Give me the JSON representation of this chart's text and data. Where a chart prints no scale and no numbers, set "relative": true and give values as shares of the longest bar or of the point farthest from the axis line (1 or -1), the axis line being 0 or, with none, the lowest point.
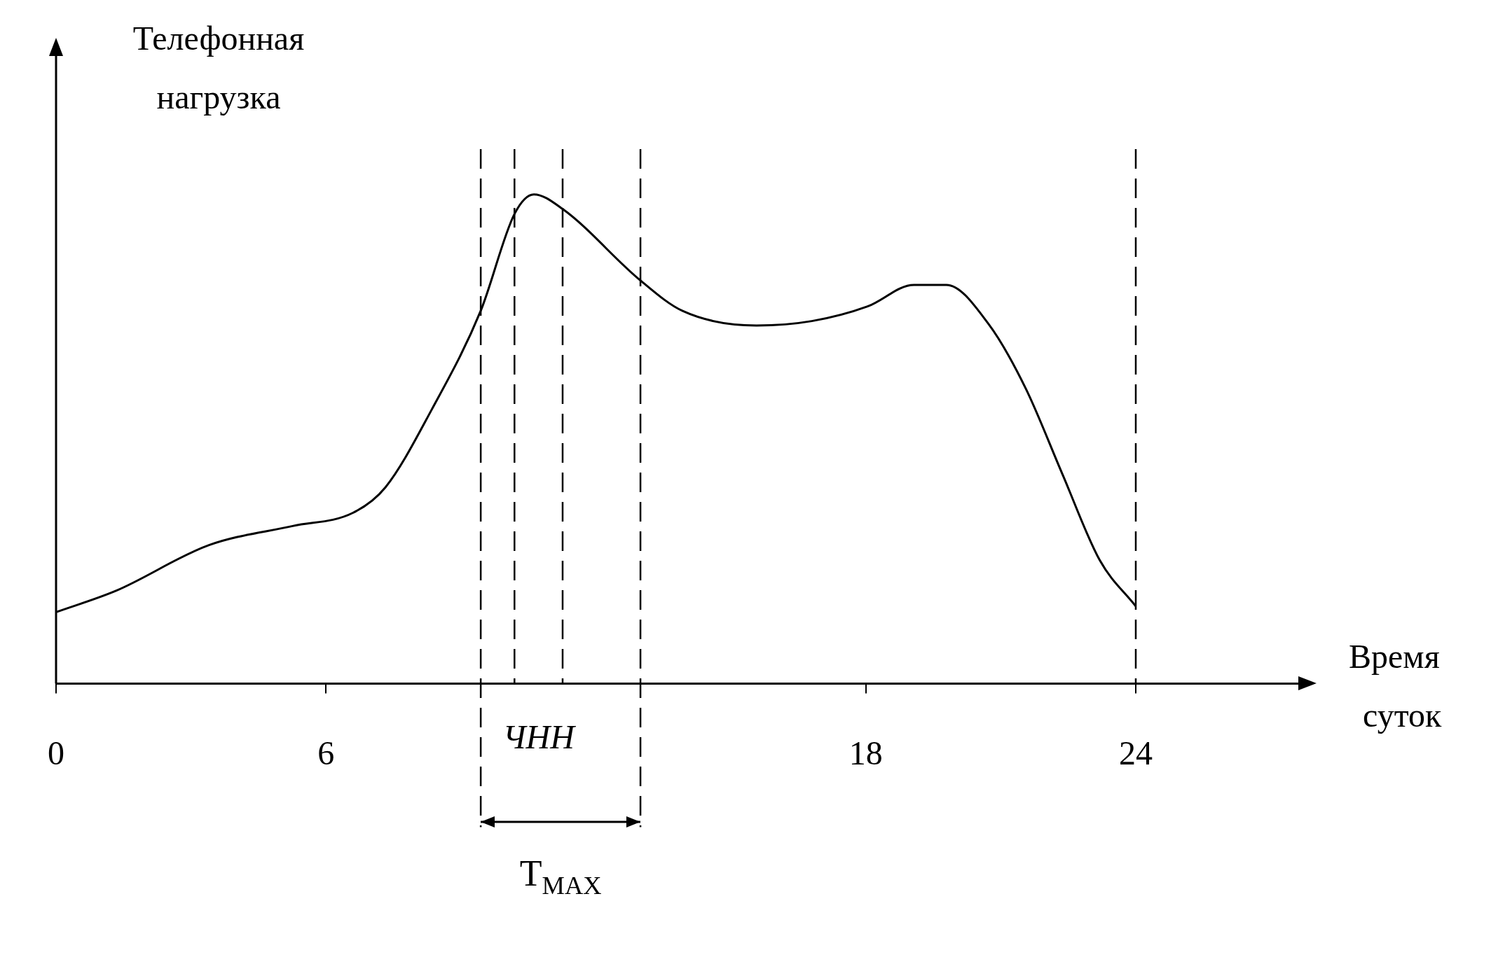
{
  "chart_data": {
    "type": "line",
    "relative": true,
    "xlabel": "Время суток",
    "ylabel": "Телефонная нагрузка",
    "x": [
      0,
      1.34,
      3.4,
      5.26,
      6.6,
      7.32,
      8.35,
      9.44,
      10.19,
      10.62,
      11.26,
      12.99,
      13.92,
      15.57,
      16.8,
      18.04,
      19.07,
      19.79,
      20.72,
      21.55,
      22.37,
      23.2,
      24
    ],
    "series": [
      {
        "color": "#000000",
        "values": [
          0.146,
          0.19,
          0.283,
          0.322,
          0.349,
          0.401,
          0.56,
          0.762,
          0.96,
          1,
          0.97,
          0.824,
          0.762,
          0.732,
          0.741,
          0.771,
          0.815,
          0.815,
          0.736,
          0.604,
          0.428,
          0.252,
          0.158
        ]
      }
    ],
    "xlim": [
      0,
      27.8
    ],
    "xticks": [
      0,
      6,
      18,
      24
    ],
    "ref_lines": [
      {
        "axis": "x",
        "value": 9.44,
        "line_style": "dashed",
        "color": "#000000"
      },
      {
        "axis": "x",
        "value": 10.19,
        "line_style": "dashed",
        "color": "#000000"
      },
      {
        "axis": "x",
        "value": 11.26,
        "line_style": "dashed",
        "color": "#000000"
      },
      {
        "axis": "x",
        "value": 12.99,
        "line_style": "dashed",
        "color": "#000000"
      },
      {
        "axis": "x",
        "value": 24,
        "line_style": "dashed",
        "color": "#000000"
      }
    ],
    "annotations": [
      "ЧНН",
      "T$_{MAX}$"
    ],
    "grid": false,
    "legend": false,
    "marker": "none",
    "line_style": "solid"
  }
}
